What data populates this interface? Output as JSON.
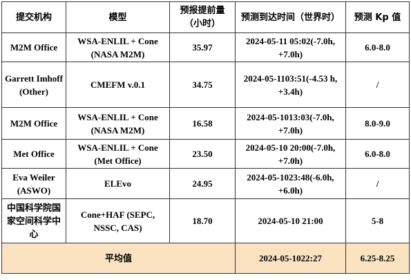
{
  "table": {
    "header": [
      "提交机构",
      "模型",
      "预报提前量（小时）",
      "预测到达时间（世界时）",
      "预测 Kp 值"
    ],
    "rows": [
      [
        "M2M Office",
        "WSA-ENLIL + Cone (NASA M2M)",
        "35.97",
        "2024-05-11 05:02(-7.0h, +7.0h)",
        "6.0-8.0"
      ],
      [
        "Garrett Imhoff (Other)",
        "CMEFM v.0.1",
        "34.75",
        "2024-05-1103:51(-4.53 h, +3.4h)",
        "/"
      ],
      [
        "M2M Office",
        "WSA-ENLIL + Cone (NASA M2M)",
        "16.58",
        "2024-05-1013:03(-7.0h, +7.0h)",
        "8.0-9.0"
      ],
      [
        "Met Office",
        "WSA-ENLIL + Cone (Met Office)",
        "23.50",
        "2024-05-10 20:00(-7.0h, +7.0h)",
        "6.0-8.0"
      ],
      [
        "Eva Weiler (ASWO)",
        "ELEvo",
        "24.95",
        "2024-05-1023:48(-6.0h, +6.0h)",
        "/"
      ],
      [
        "中国科学院国家空间科学中心",
        "Cone+HAF (SEPC, NSSC, CAS)",
        "18.70",
        "2024-05-10 21:00",
        "5-8"
      ]
    ],
    "footer": [
      "平均值",
      "2024-05-1022:27",
      "6.25-8.25"
    ]
  }
}
